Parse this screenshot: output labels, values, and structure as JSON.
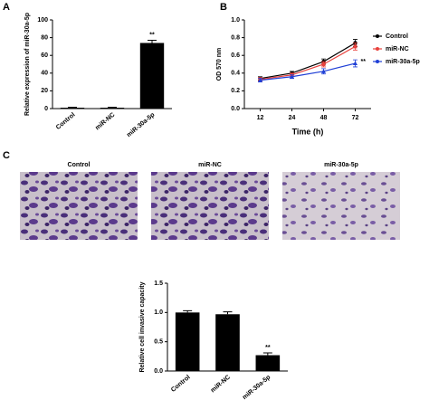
{
  "chart_data": [
    {
      "type": "bar",
      "panel_label": "A",
      "ylabel": "Relative expression of miR-30a-5p",
      "categories": [
        "Control",
        "miR-NC",
        "miR-30a-5p"
      ],
      "values": [
        1,
        1,
        74
      ],
      "errors": [
        0.5,
        0.5,
        3
      ],
      "color": "#000000",
      "ylim": [
        0,
        100
      ],
      "yticks": [
        0,
        20,
        40,
        60,
        80,
        100
      ],
      "annotation": "**"
    },
    {
      "type": "line",
      "panel_label": "B",
      "ylabel": "OD 570 nm",
      "xlabel": "Time (h)",
      "categories": [
        "12",
        "24",
        "48",
        "72"
      ],
      "series": [
        {
          "name": "Control",
          "color": "#000000",
          "values": [
            0.34,
            0.4,
            0.53,
            0.74
          ],
          "errors": [
            0.02,
            0.02,
            0.03,
            0.04
          ]
        },
        {
          "name": "miR-NC",
          "color": "#e8413c",
          "values": [
            0.33,
            0.38,
            0.5,
            0.7
          ],
          "errors": [
            0.02,
            0.02,
            0.03,
            0.04
          ]
        },
        {
          "name": "miR-30a-5p",
          "color": "#1f3fd6",
          "values": [
            0.32,
            0.36,
            0.42,
            0.51
          ],
          "errors": [
            0.02,
            0.02,
            0.03,
            0.04
          ]
        }
      ],
      "ylim": [
        0,
        1
      ],
      "yticks": [
        {
          "value": 0,
          "label": "0.0"
        },
        0.2,
        0.4,
        0.6,
        0.8,
        {
          "value": 1,
          "label": "1.0"
        }
      ],
      "legend": "right",
      "annotation": "**"
    },
    {
      "type": "bar",
      "panel_label": "C",
      "image_titles": [
        "Control",
        "miR-NC",
        "miR-30a-5p"
      ],
      "ylabel": "Relative cell invasive capacity",
      "categories": [
        "Control",
        "miR-NC",
        "miR-30a-5p"
      ],
      "values": [
        1.0,
        0.97,
        0.27
      ],
      "errors": [
        0.03,
        0.04,
        0.04
      ],
      "color": "#000000",
      "ylim": [
        0,
        1.5
      ],
      "yticks": [
        {
          "value": 0,
          "label": "0.0"
        },
        0.5,
        {
          "value": 1,
          "label": "1.0"
        },
        1.5
      ],
      "annotation": "**"
    }
  ]
}
